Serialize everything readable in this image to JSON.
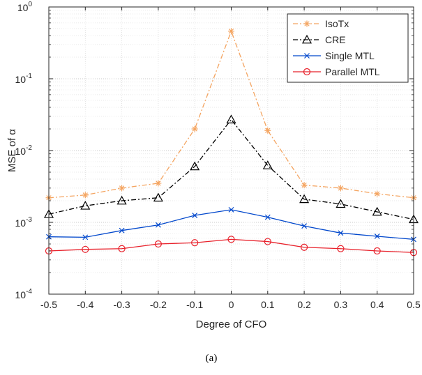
{
  "chart_data": {
    "type": "line",
    "xlabel": "Degree of CFO",
    "ylabel": "MSE of α",
    "yscale": "log",
    "xlim": [
      -0.5,
      0.5
    ],
    "ylim": [
      0.0001,
      1
    ],
    "grid": "on (major and minor)",
    "legend_position": "top-right",
    "x": [
      -0.5,
      -0.4,
      -0.3,
      -0.2,
      -0.1,
      0,
      0.1,
      0.2,
      0.3,
      0.4,
      0.5
    ],
    "x_tick_labels": [
      "-0.5",
      "-0.4",
      "-0.3",
      "-0.2",
      "-0.1",
      "0",
      "0.1",
      "0.2",
      "0.3",
      "0.4",
      "0.5"
    ],
    "y_tick_labels": [
      {
        "base": "10",
        "exp": "0"
      },
      {
        "base": "10",
        "exp": "-1"
      },
      {
        "base": "10",
        "exp": "-2"
      },
      {
        "base": "10",
        "exp": "-3"
      },
      {
        "base": "10",
        "exp": "-4"
      }
    ],
    "series": [
      {
        "name": "IsoTx",
        "color": "#EDB120",
        "line_color": "#F4A460",
        "marker": "asterisk",
        "dash": "dashdot",
        "values": [
          0.0022,
          0.0024,
          0.003,
          0.0035,
          0.02,
          0.46,
          0.019,
          0.0033,
          0.003,
          0.0025,
          0.0022
        ]
      },
      {
        "name": "CRE",
        "color": "#000000",
        "marker": "triangle",
        "dash": "dashdot",
        "values": [
          0.0013,
          0.0017,
          0.002,
          0.0022,
          0.006,
          0.027,
          0.0062,
          0.0021,
          0.0018,
          0.0014,
          0.0011
        ]
      },
      {
        "name": "Single MTL",
        "color": "#0047CC",
        "marker": "x",
        "dash": "solid",
        "values": [
          0.00063,
          0.00062,
          0.00077,
          0.00092,
          0.00125,
          0.0015,
          0.00118,
          0.00089,
          0.00071,
          0.00064,
          0.00058
        ]
      },
      {
        "name": "Parallel MTL",
        "color": "#E8202A",
        "marker": "circle",
        "dash": "solid",
        "values": [
          0.0004,
          0.00042,
          0.00043,
          0.0005,
          0.00052,
          0.00058,
          0.00054,
          0.00045,
          0.00043,
          0.0004,
          0.00038
        ]
      }
    ]
  },
  "caption": "(a)"
}
